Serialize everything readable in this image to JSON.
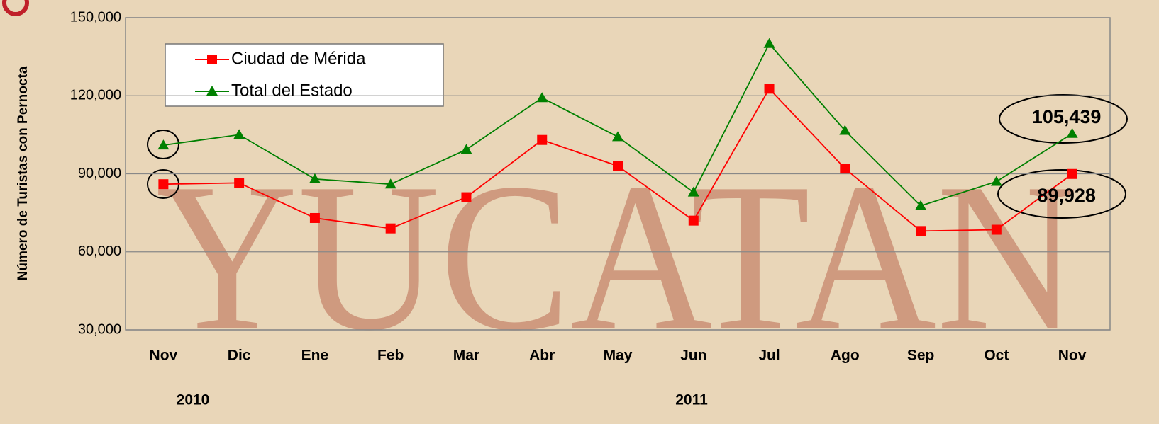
{
  "chart_data": {
    "type": "line",
    "watermark": "YUCATAN",
    "y_label": "Número de Turistas con Pernocta",
    "categories": [
      "Nov",
      "Dic",
      "Ene",
      "Feb",
      "Mar",
      "Abr",
      "May",
      "Jun",
      "Jul",
      "Ago",
      "Sep",
      "Oct",
      "Nov"
    ],
    "annotations": [
      "2010",
      "2011"
    ],
    "series": [
      {
        "name": "Ciudad de Mérida",
        "color": "#ff0000",
        "marker": "square",
        "values": [
          86000,
          86500,
          73000,
          69000,
          81000,
          103000,
          93000,
          72000,
          122700,
          92000,
          68000,
          68500,
          89928
        ],
        "value_labels": [
          null,
          null,
          null,
          null,
          null,
          null,
          null,
          null,
          null,
          null,
          null,
          null,
          "89,928"
        ]
      },
      {
        "name": "Total del Estado",
        "color": "#008000",
        "marker": "triangle",
        "values": [
          101000,
          105000,
          88000,
          86000,
          99300,
          119200,
          104200,
          82900,
          140000,
          106600,
          77700,
          87000,
          105439
        ],
        "value_labels": [
          null,
          null,
          null,
          null,
          null,
          null,
          null,
          null,
          null,
          null,
          null,
          null,
          "105,439"
        ]
      }
    ],
    "ylim": [
      30000,
      150000
    ],
    "yticks": [
      {
        "value": 30000,
        "label": "30,000"
      },
      {
        "value": 60000,
        "label": "60,000"
      },
      {
        "value": 90000,
        "label": "90,000"
      },
      {
        "value": 120000,
        "label": "120,000"
      },
      {
        "value": 150000,
        "label": "150,000"
      }
    ],
    "grid": true,
    "legend": "upper left"
  }
}
